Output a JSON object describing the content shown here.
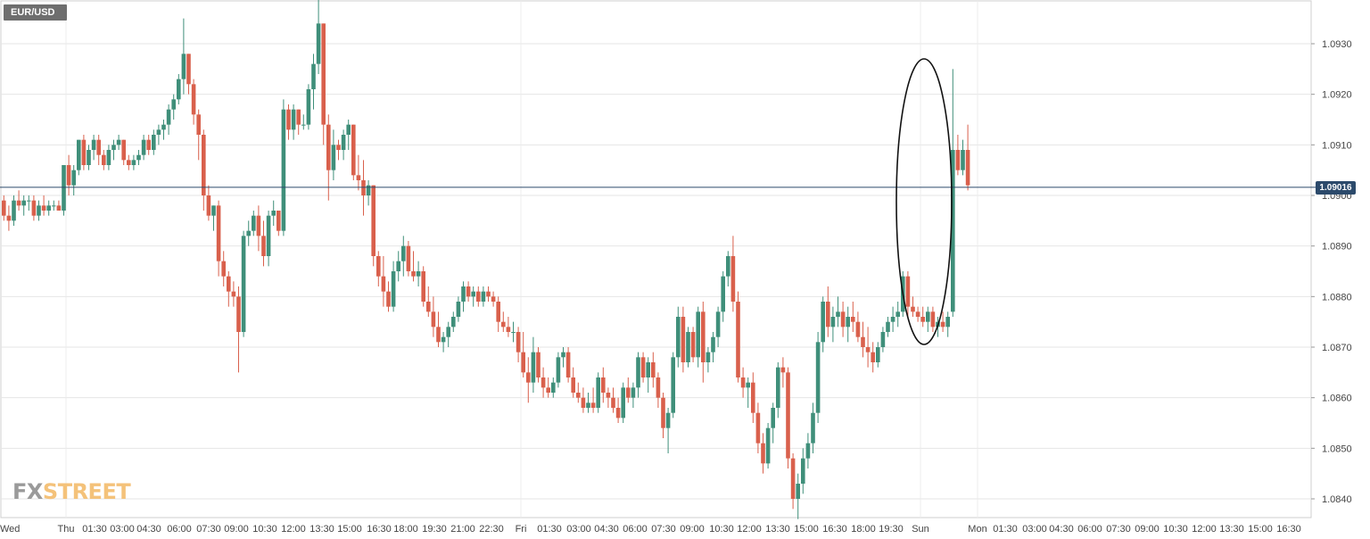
{
  "symbol": "EUR/USD",
  "logo": {
    "part1": "FX",
    "part2": "STREET"
  },
  "current_price_label": "1.09016",
  "colors": {
    "up": "#3f8f7a",
    "down": "#d9604c",
    "price_line": "#2c4a6b",
    "grid": "#e6e6e6"
  },
  "chart_data": {
    "type": "candlestick",
    "title": "EUR/USD",
    "y_axis": {
      "position": "right",
      "ticks": [
        "1.0840",
        "1.0850",
        "1.0860",
        "1.0870",
        "1.0880",
        "1.0890",
        "1.0900",
        "1.0910",
        "1.0920",
        "1.0930"
      ],
      "range": [
        1.0836,
        1.0939
      ]
    },
    "x_axis": {
      "ticks": [
        "Wed",
        "Thu",
        "01:30",
        "03:00",
        "04:30",
        "06:00",
        "07:30",
        "09:00",
        "10:30",
        "12:00",
        "13:30",
        "15:00",
        "16:30",
        "18:00",
        "19:30",
        "21:00",
        "22:30",
        "Fri",
        "01:30",
        "03:00",
        "04:30",
        "06:00",
        "07:30",
        "09:00",
        "10:30",
        "12:00",
        "13:30",
        "15:00",
        "16:30",
        "18:00",
        "19:30",
        "Sun",
        "Mon",
        "01:30",
        "03:00",
        "04:30",
        "06:00",
        "07:30",
        "09:00",
        "10:30",
        "12:00",
        "13:30",
        "15:00",
        "16:30"
      ]
    },
    "current_price": 1.09016,
    "annotation": {
      "type": "ellipse",
      "around": "Sunday gap"
    },
    "grid": true,
    "legend": "none",
    "candles": [
      [
        1.0899,
        1.09,
        1.0895,
        1.0896
      ],
      [
        1.0896,
        1.0898,
        1.0893,
        1.0895
      ],
      [
        1.0895,
        1.09,
        1.0894,
        1.0899
      ],
      [
        1.0899,
        1.0901,
        1.0897,
        1.0898
      ],
      [
        1.0898,
        1.09,
        1.0896,
        1.0899
      ],
      [
        1.0899,
        1.09,
        1.0897,
        1.0899
      ],
      [
        1.0899,
        1.09,
        1.0895,
        1.0896
      ],
      [
        1.0896,
        1.0899,
        1.0895,
        1.0898
      ],
      [
        1.0898,
        1.09,
        1.0896,
        1.0897
      ],
      [
        1.0897,
        1.0899,
        1.0896,
        1.0898
      ],
      [
        1.0898,
        1.0899,
        1.0897,
        1.0898
      ],
      [
        1.0898,
        1.0899,
        1.0897,
        1.0897
      ],
      [
        1.0897,
        1.0906,
        1.0896,
        1.0906
      ],
      [
        1.0906,
        1.0908,
        1.09,
        1.0902
      ],
      [
        1.0902,
        1.0906,
        1.09,
        1.0905
      ],
      [
        1.0905,
        1.0911,
        1.0904,
        1.0911
      ],
      [
        1.0911,
        1.0912,
        1.0905,
        1.0906
      ],
      [
        1.0906,
        1.091,
        1.0905,
        1.0909
      ],
      [
        1.0909,
        1.0912,
        1.0907,
        1.0911
      ],
      [
        1.0911,
        1.0912,
        1.0906,
        1.0908
      ],
      [
        1.0908,
        1.0909,
        1.0905,
        1.0906
      ],
      [
        1.0906,
        1.091,
        1.0905,
        1.0909
      ],
      [
        1.0909,
        1.0911,
        1.0907,
        1.091
      ],
      [
        1.091,
        1.0912,
        1.0909,
        1.0911
      ],
      [
        1.0911,
        1.0911,
        1.0906,
        1.0907
      ],
      [
        1.0907,
        1.0908,
        1.0905,
        1.0906
      ],
      [
        1.0906,
        1.0908,
        1.0905,
        1.0907
      ],
      [
        1.0907,
        1.0909,
        1.0906,
        1.0908
      ],
      [
        1.0908,
        1.0912,
        1.0907,
        1.0911
      ],
      [
        1.0911,
        1.0912,
        1.0908,
        1.0909
      ],
      [
        1.0909,
        1.0913,
        1.0908,
        1.0912
      ],
      [
        1.0912,
        1.0914,
        1.091,
        1.0913
      ],
      [
        1.0913,
        1.0915,
        1.0911,
        1.0914
      ],
      [
        1.0914,
        1.0918,
        1.0912,
        1.0917
      ],
      [
        1.0917,
        1.092,
        1.0915,
        1.0919
      ],
      [
        1.0919,
        1.0924,
        1.0918,
        1.0923
      ],
      [
        1.0923,
        1.0935,
        1.092,
        1.0928
      ],
      [
        1.0928,
        1.0928,
        1.092,
        1.0922
      ],
      [
        1.0922,
        1.0923,
        1.0914,
        1.0916
      ],
      [
        1.0916,
        1.0917,
        1.0907,
        1.0912
      ],
      [
        1.0912,
        1.0913,
        1.0897,
        1.09
      ],
      [
        1.09,
        1.0902,
        1.0895,
        1.0896
      ],
      [
        1.0896,
        1.0898,
        1.0893,
        1.0898
      ],
      [
        1.0898,
        1.0899,
        1.0884,
        1.0887
      ],
      [
        1.0887,
        1.0889,
        1.0882,
        1.0884
      ],
      [
        1.0884,
        1.0885,
        1.0878,
        1.0881
      ],
      [
        1.0881,
        1.0883,
        1.0878,
        1.088
      ],
      [
        1.088,
        1.0882,
        1.0865,
        1.0873
      ],
      [
        1.0873,
        1.0893,
        1.0872,
        1.0892
      ],
      [
        1.0892,
        1.0895,
        1.089,
        1.0893
      ],
      [
        1.0893,
        1.0897,
        1.0892,
        1.0896
      ],
      [
        1.0896,
        1.0898,
        1.0889,
        1.0892
      ],
      [
        1.0892,
        1.0895,
        1.0886,
        1.0888
      ],
      [
        1.0888,
        1.0897,
        1.0886,
        1.0896
      ],
      [
        1.0896,
        1.0899,
        1.0894,
        1.0897
      ],
      [
        1.0897,
        1.0897,
        1.0892,
        1.0893
      ],
      [
        1.0893,
        1.0919,
        1.0892,
        1.0917
      ],
      [
        1.0917,
        1.0918,
        1.0911,
        1.0913
      ],
      [
        1.0913,
        1.0918,
        1.0911,
        1.0917
      ],
      [
        1.0917,
        1.0917,
        1.0912,
        1.0914
      ],
      [
        1.0914,
        1.0916,
        1.0913,
        1.0914
      ],
      [
        1.0914,
        1.0922,
        1.0913,
        1.0921
      ],
      [
        1.0921,
        1.0928,
        1.0917,
        1.0926
      ],
      [
        1.0926,
        1.0939,
        1.0924,
        1.0934
      ],
      [
        1.0934,
        1.0934,
        1.091,
        1.0914
      ],
      [
        1.0914,
        1.0916,
        1.0899,
        1.0905
      ],
      [
        1.0905,
        1.0913,
        1.0903,
        1.091
      ],
      [
        1.091,
        1.0911,
        1.0907,
        1.0909
      ],
      [
        1.0909,
        1.0913,
        1.0907,
        1.0912
      ],
      [
        1.0912,
        1.0915,
        1.0909,
        1.0914
      ],
      [
        1.0914,
        1.0914,
        1.0903,
        1.0904
      ],
      [
        1.0904,
        1.0908,
        1.0901,
        1.0903
      ],
      [
        1.0903,
        1.0907,
        1.0896,
        1.09
      ],
      [
        1.09,
        1.0903,
        1.0898,
        1.0902
      ],
      [
        1.0902,
        1.0902,
        1.0886,
        1.0888
      ],
      [
        1.0888,
        1.0889,
        1.0882,
        1.0884
      ],
      [
        1.0884,
        1.0888,
        1.0878,
        1.0881
      ],
      [
        1.0881,
        1.0883,
        1.0877,
        1.0878
      ],
      [
        1.0878,
        1.0887,
        1.0877,
        1.0885
      ],
      [
        1.0885,
        1.0889,
        1.0883,
        1.0887
      ],
      [
        1.0887,
        1.0892,
        1.0884,
        1.089
      ],
      [
        1.089,
        1.0891,
        1.0884,
        1.0885
      ],
      [
        1.0885,
        1.0889,
        1.0883,
        1.0884
      ],
      [
        1.0884,
        1.0887,
        1.0882,
        1.0885
      ],
      [
        1.0885,
        1.0886,
        1.0878,
        1.0879
      ],
      [
        1.0879,
        1.0882,
        1.0876,
        1.0877
      ],
      [
        1.0877,
        1.088,
        1.0872,
        1.0874
      ],
      [
        1.0874,
        1.0877,
        1.087,
        1.0871
      ],
      [
        1.0871,
        1.0873,
        1.0869,
        1.0872
      ],
      [
        1.0872,
        1.0875,
        1.087,
        1.0874
      ],
      [
        1.0874,
        1.0877,
        1.0873,
        1.0876
      ],
      [
        1.0876,
        1.088,
        1.0875,
        1.0879
      ],
      [
        1.0879,
        1.0883,
        1.0877,
        1.0882
      ],
      [
        1.0882,
        1.0883,
        1.0879,
        1.088
      ],
      [
        1.088,
        1.0882,
        1.0878,
        1.0881
      ],
      [
        1.0881,
        1.0882,
        1.0878,
        1.0879
      ],
      [
        1.0879,
        1.0882,
        1.0878,
        1.0881
      ],
      [
        1.0881,
        1.0882,
        1.0879,
        1.088
      ],
      [
        1.088,
        1.0881,
        1.0878,
        1.0879
      ],
      [
        1.0879,
        1.088,
        1.0873,
        1.0875
      ],
      [
        1.0875,
        1.0877,
        1.0873,
        1.0874
      ],
      [
        1.0874,
        1.0876,
        1.0872,
        1.0873
      ],
      [
        1.0873,
        1.0875,
        1.0871,
        1.0873
      ],
      [
        1.0873,
        1.0874,
        1.0867,
        1.0869
      ],
      [
        1.0869,
        1.0873,
        1.0864,
        1.0865
      ],
      [
        1.0865,
        1.0868,
        1.0859,
        1.0863
      ],
      [
        1.0863,
        1.0872,
        1.0861,
        1.0869
      ],
      [
        1.0869,
        1.087,
        1.0863,
        1.0864
      ],
      [
        1.0864,
        1.0866,
        1.086,
        1.0862
      ],
      [
        1.0862,
        1.0864,
        1.086,
        1.0861
      ],
      [
        1.0861,
        1.0864,
        1.086,
        1.0863
      ],
      [
        1.0863,
        1.0869,
        1.0862,
        1.0868
      ],
      [
        1.0868,
        1.087,
        1.0866,
        1.0869
      ],
      [
        1.0869,
        1.087,
        1.0863,
        1.0864
      ],
      [
        1.0864,
        1.0866,
        1.086,
        1.0861
      ],
      [
        1.0861,
        1.0863,
        1.0859,
        1.086
      ],
      [
        1.086,
        1.0862,
        1.0857,
        1.0858
      ],
      [
        1.0858,
        1.0861,
        1.0857,
        1.0859
      ],
      [
        1.0859,
        1.0862,
        1.0857,
        1.0858
      ],
      [
        1.0858,
        1.0865,
        1.0857,
        1.0864
      ],
      [
        1.0864,
        1.0866,
        1.0859,
        1.0861
      ],
      [
        1.0861,
        1.0862,
        1.0858,
        1.086
      ],
      [
        1.086,
        1.0862,
        1.0857,
        1.0858
      ],
      [
        1.0858,
        1.086,
        1.0855,
        1.0856
      ],
      [
        1.0856,
        1.0863,
        1.0855,
        1.0862
      ],
      [
        1.0862,
        1.0864,
        1.0859,
        1.086
      ],
      [
        1.086,
        1.0863,
        1.0858,
        1.0862
      ],
      [
        1.0862,
        1.0869,
        1.086,
        1.0868
      ],
      [
        1.0868,
        1.0869,
        1.0863,
        1.0864
      ],
      [
        1.0864,
        1.0868,
        1.0861,
        1.0867
      ],
      [
        1.0867,
        1.0869,
        1.0862,
        1.0864
      ],
      [
        1.0864,
        1.0865,
        1.0858,
        1.086
      ],
      [
        1.086,
        1.0861,
        1.0852,
        1.0854
      ],
      [
        1.0854,
        1.0858,
        1.0849,
        1.0857
      ],
      [
        1.0857,
        1.0869,
        1.0856,
        1.0868
      ],
      [
        1.0868,
        1.0878,
        1.0866,
        1.0876
      ],
      [
        1.0876,
        1.0878,
        1.0865,
        1.0867
      ],
      [
        1.0867,
        1.0874,
        1.0866,
        1.0873
      ],
      [
        1.0873,
        1.0874,
        1.0867,
        1.0868
      ],
      [
        1.0868,
        1.0878,
        1.0866,
        1.0877
      ],
      [
        1.0877,
        1.0879,
        1.0863,
        1.0867
      ],
      [
        1.0867,
        1.087,
        1.0865,
        1.0869
      ],
      [
        1.0869,
        1.0873,
        1.0867,
        1.0872
      ],
      [
        1.0872,
        1.0878,
        1.087,
        1.0877
      ],
      [
        1.0877,
        1.0885,
        1.0875,
        1.0884
      ],
      [
        1.0884,
        1.0889,
        1.0882,
        1.0888
      ],
      [
        1.0888,
        1.0892,
        1.0877,
        1.0879
      ],
      [
        1.0879,
        1.0881,
        1.0863,
        1.0864
      ],
      [
        1.0864,
        1.0866,
        1.086,
        1.0862
      ],
      [
        1.0862,
        1.0864,
        1.0858,
        1.0863
      ],
      [
        1.0863,
        1.0865,
        1.0855,
        1.0857
      ],
      [
        1.0857,
        1.0859,
        1.0849,
        1.0851
      ],
      [
        1.0851,
        1.0853,
        1.0845,
        1.0847
      ],
      [
        1.0847,
        1.0855,
        1.0846,
        1.0854
      ],
      [
        1.0854,
        1.0859,
        1.0851,
        1.0858
      ],
      [
        1.0858,
        1.0867,
        1.0856,
        1.0866
      ],
      [
        1.0866,
        1.0868,
        1.0862,
        1.0865
      ],
      [
        1.0865,
        1.0866,
        1.0846,
        1.0848
      ],
      [
        1.0848,
        1.0849,
        1.0838,
        1.084
      ],
      [
        1.084,
        1.0845,
        1.0836,
        1.0843
      ],
      [
        1.0843,
        1.085,
        1.0841,
        1.0848
      ],
      [
        1.0848,
        1.0853,
        1.0846,
        1.0851
      ],
      [
        1.0851,
        1.0859,
        1.0849,
        1.0857
      ],
      [
        1.0857,
        1.0873,
        1.0855,
        1.0871
      ],
      [
        1.0871,
        1.088,
        1.0869,
        1.0879
      ],
      [
        1.0879,
        1.0882,
        1.0872,
        1.0874
      ],
      [
        1.0874,
        1.0878,
        1.0871,
        1.0876
      ],
      [
        1.0876,
        1.088,
        1.0874,
        1.0877
      ],
      [
        1.0877,
        1.0879,
        1.0872,
        1.0874
      ],
      [
        1.0874,
        1.0878,
        1.0871,
        1.0876
      ],
      [
        1.0876,
        1.0879,
        1.0873,
        1.0875
      ],
      [
        1.0875,
        1.0877,
        1.0871,
        1.0872
      ],
      [
        1.0872,
        1.0875,
        1.0868,
        1.087
      ],
      [
        1.087,
        1.0874,
        1.0866,
        1.0869
      ],
      [
        1.0869,
        1.0871,
        1.0865,
        1.0867
      ],
      [
        1.0867,
        1.0871,
        1.0866,
        1.087
      ],
      [
        1.087,
        1.0874,
        1.0869,
        1.0873
      ],
      [
        1.0873,
        1.0876,
        1.0872,
        1.0875
      ],
      [
        1.0875,
        1.0878,
        1.0873,
        1.0876
      ],
      [
        1.0876,
        1.0879,
        1.0874,
        1.0877
      ],
      [
        1.0877,
        1.0885,
        1.0876,
        1.0884
      ],
      [
        1.0884,
        1.0885,
        1.0876,
        1.0878
      ],
      [
        1.0878,
        1.088,
        1.0876,
        1.0877
      ],
      [
        1.0877,
        1.0878,
        1.0875,
        1.0876
      ],
      [
        1.0876,
        1.0878,
        1.0874,
        1.0875
      ],
      [
        1.0875,
        1.0878,
        1.0873,
        1.0877
      ],
      [
        1.0877,
        1.0878,
        1.0873,
        1.0874
      ],
      [
        1.0874,
        1.0876,
        1.0872,
        1.0875
      ],
      [
        1.0875,
        1.0877,
        1.0873,
        1.0874
      ],
      [
        1.0874,
        1.0877,
        1.0872,
        1.0876
      ],
      [
        1.0877,
        1.0925,
        1.0876,
        1.0909
      ],
      [
        1.0909,
        1.0912,
        1.0904,
        1.0905
      ],
      [
        1.0905,
        1.0911,
        1.0904,
        1.0909
      ],
      [
        1.0909,
        1.0914,
        1.0901,
        1.0902
      ]
    ]
  }
}
